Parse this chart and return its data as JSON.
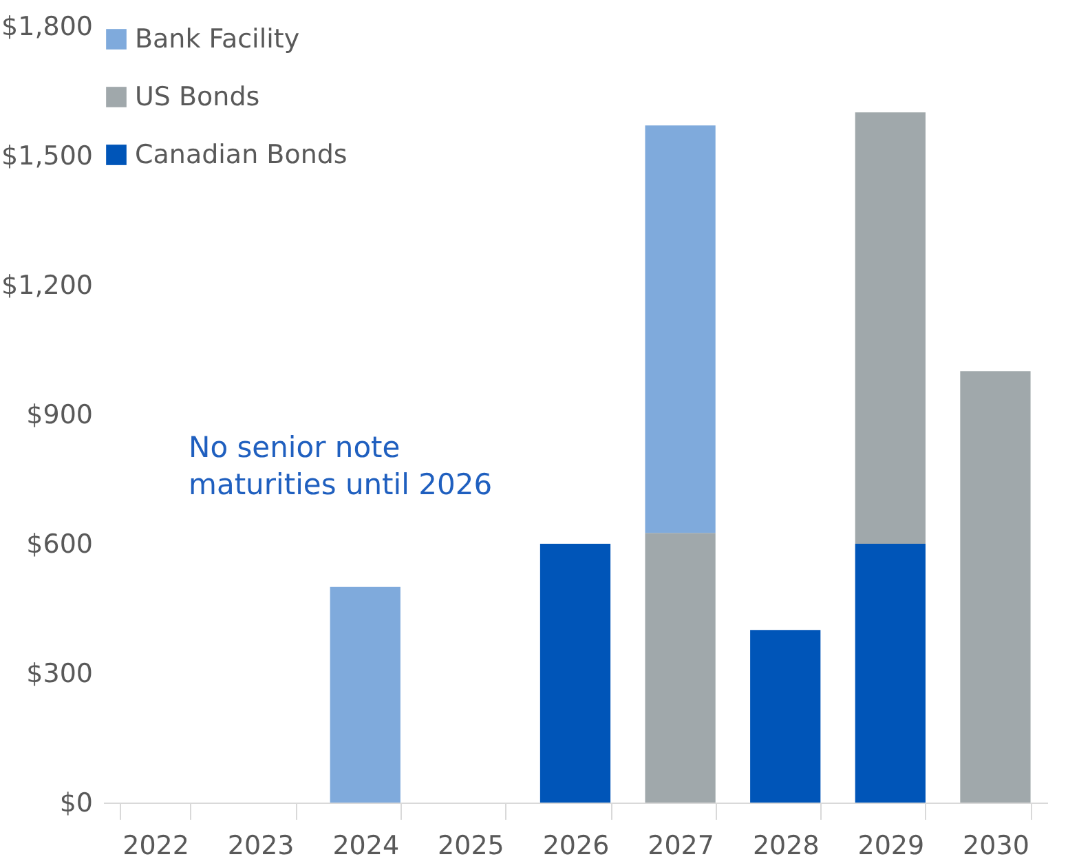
{
  "chart_data": {
    "type": "bar",
    "stacked": true,
    "categories": [
      "2022",
      "2023",
      "2024",
      "2025",
      "2026",
      "2027",
      "2028",
      "2029",
      "2030"
    ],
    "series": [
      {
        "name": "Canadian Bonds",
        "color": "#0055b8",
        "values": [
          null,
          null,
          null,
          null,
          600,
          null,
          400,
          600,
          null
        ]
      },
      {
        "name": "US Bonds",
        "color": "#a0a8ab",
        "values": [
          null,
          null,
          null,
          null,
          null,
          625,
          null,
          1000,
          1000
        ]
      },
      {
        "name": "Bank Facility",
        "color": "#7faadc",
        "values": [
          null,
          null,
          500,
          null,
          null,
          945,
          null,
          null,
          null
        ]
      }
    ],
    "ylim": [
      0,
      1800
    ],
    "yticks": [
      {
        "value": 0,
        "label": "$0"
      },
      {
        "value": 300,
        "label": "$300"
      },
      {
        "value": 600,
        "label": "$600"
      },
      {
        "value": 900,
        "label": "$900"
      },
      {
        "value": 1200,
        "label": "$1,200"
      },
      {
        "value": 1500,
        "label": "$1,500"
      },
      {
        "value": 1800,
        "label": "$1,800"
      }
    ],
    "legend": "top left",
    "grid": false,
    "annotations": [
      "No senior note maturities until 2026"
    ]
  }
}
